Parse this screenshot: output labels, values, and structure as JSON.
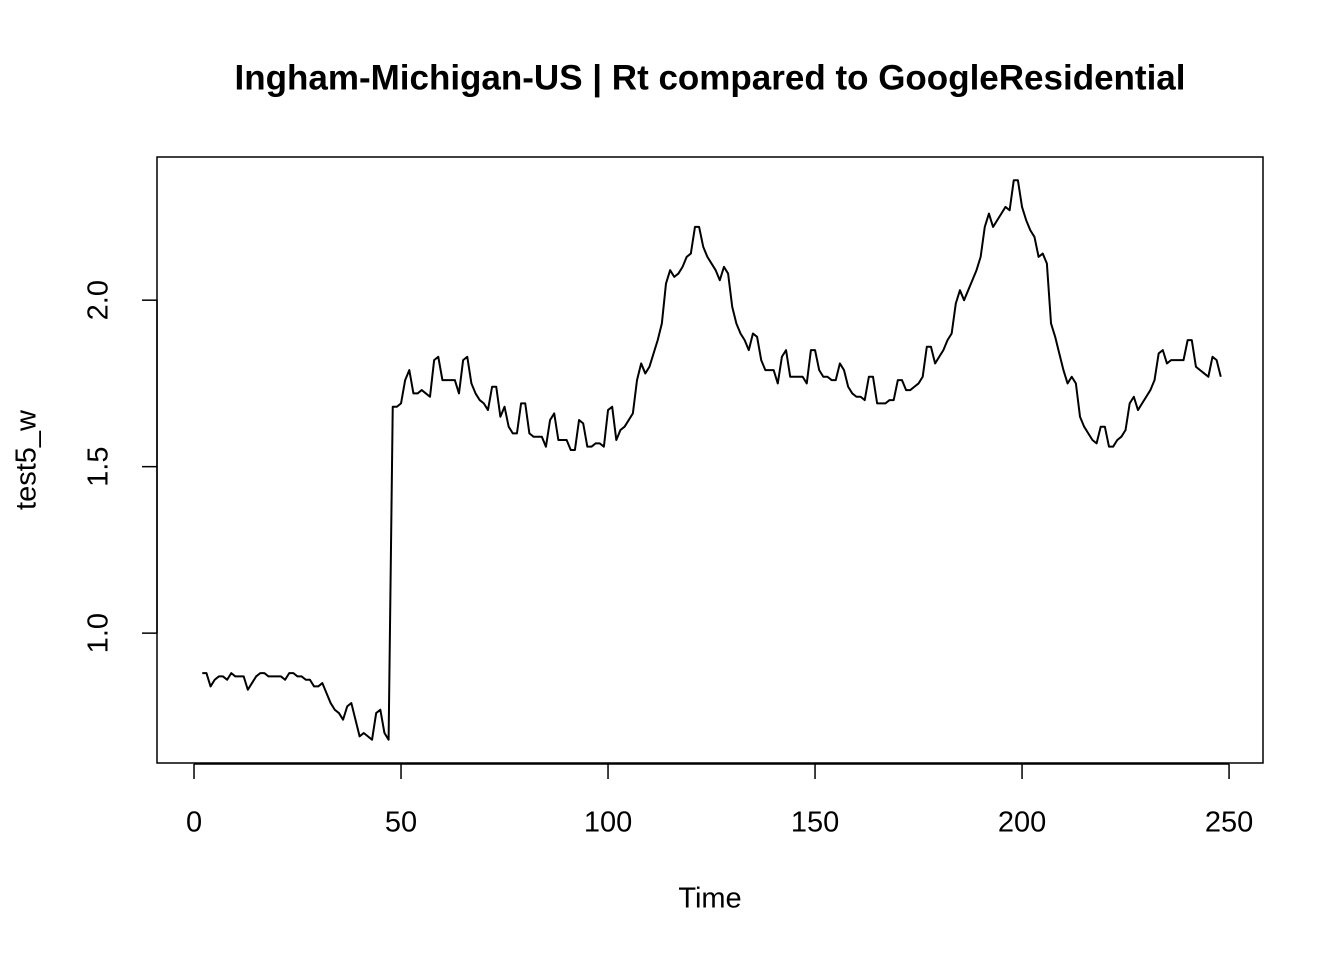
{
  "chart_data": {
    "type": "line",
    "title": "Ingham-Michigan-US | Rt compared to GoogleResidential",
    "x_label": "Time",
    "y_label": "test5_w",
    "x": [
      2,
      3,
      4,
      5,
      6,
      7,
      8,
      9,
      10,
      11,
      12,
      13,
      14,
      15,
      16,
      17,
      18,
      19,
      20,
      21,
      22,
      23,
      24,
      25,
      26,
      27,
      28,
      29,
      30,
      31,
      32,
      33,
      34,
      35,
      36,
      37,
      38,
      39,
      40,
      41,
      42,
      43,
      44,
      45,
      46,
      47,
      48,
      49,
      50,
      51,
      52,
      53,
      54,
      55,
      56,
      57,
      58,
      59,
      60,
      61,
      62,
      63,
      64,
      65,
      66,
      67,
      68,
      69,
      70,
      71,
      72,
      73,
      74,
      75,
      76,
      77,
      78,
      79,
      80,
      81,
      82,
      83,
      84,
      85,
      86,
      87,
      88,
      89,
      90,
      91,
      92,
      93,
      94,
      95,
      96,
      97,
      98,
      99,
      100,
      101,
      102,
      103,
      104,
      105,
      106,
      107,
      108,
      109,
      110,
      111,
      112,
      113,
      114,
      115,
      116,
      117,
      118,
      119,
      120,
      121,
      122,
      123,
      124,
      125,
      126,
      127,
      128,
      129,
      130,
      131,
      132,
      133,
      134,
      135,
      136,
      137,
      138,
      139,
      140,
      141,
      142,
      143,
      144,
      145,
      146,
      147,
      148,
      149,
      150,
      151,
      152,
      153,
      154,
      155,
      156,
      157,
      158,
      159,
      160,
      161,
      162,
      163,
      164,
      165,
      166,
      167,
      168,
      169,
      170,
      171,
      172,
      173,
      174,
      175,
      176,
      177,
      178,
      179,
      180,
      181,
      182,
      183,
      184,
      185,
      186,
      187,
      188,
      189,
      190,
      191,
      192,
      193,
      194,
      195,
      196,
      197,
      198,
      199,
      200,
      201,
      202,
      203,
      204,
      205,
      206,
      207,
      208,
      209,
      210,
      211,
      212,
      213,
      214,
      215,
      216,
      217,
      218,
      219,
      220,
      221,
      222,
      223,
      224,
      225,
      226,
      227,
      228,
      229,
      230,
      231,
      232,
      233,
      234,
      235,
      236,
      237,
      238,
      239,
      240,
      241,
      242,
      243,
      244,
      245,
      246,
      247,
      248
    ],
    "series": [
      {
        "name": "test5_w",
        "color": "#000000",
        "values": [
          0.88,
          0.88,
          0.84,
          0.86,
          0.87,
          0.87,
          0.86,
          0.88,
          0.87,
          0.87,
          0.87,
          0.83,
          0.85,
          0.87,
          0.88,
          0.88,
          0.87,
          0.87,
          0.87,
          0.87,
          0.86,
          0.88,
          0.88,
          0.87,
          0.87,
          0.86,
          0.86,
          0.84,
          0.84,
          0.85,
          0.82,
          0.79,
          0.77,
          0.76,
          0.74,
          0.78,
          0.79,
          0.74,
          0.69,
          0.7,
          0.69,
          0.68,
          0.76,
          0.77,
          0.7,
          0.68,
          1.68,
          1.68,
          1.69,
          1.76,
          1.79,
          1.72,
          1.72,
          1.73,
          1.72,
          1.71,
          1.82,
          1.83,
          1.76,
          1.76,
          1.76,
          1.76,
          1.72,
          1.82,
          1.83,
          1.75,
          1.72,
          1.7,
          1.69,
          1.67,
          1.74,
          1.74,
          1.65,
          1.68,
          1.62,
          1.6,
          1.6,
          1.69,
          1.69,
          1.6,
          1.59,
          1.59,
          1.59,
          1.56,
          1.64,
          1.66,
          1.58,
          1.58,
          1.58,
          1.55,
          1.55,
          1.64,
          1.63,
          1.56,
          1.56,
          1.57,
          1.57,
          1.56,
          1.67,
          1.68,
          1.58,
          1.61,
          1.62,
          1.64,
          1.66,
          1.76,
          1.81,
          1.78,
          1.8,
          1.84,
          1.88,
          1.93,
          2.05,
          2.09,
          2.07,
          2.08,
          2.1,
          2.13,
          2.14,
          2.22,
          2.22,
          2.16,
          2.13,
          2.11,
          2.09,
          2.06,
          2.1,
          2.08,
          1.98,
          1.93,
          1.9,
          1.88,
          1.85,
          1.9,
          1.89,
          1.82,
          1.79,
          1.79,
          1.79,
          1.75,
          1.83,
          1.85,
          1.77,
          1.77,
          1.77,
          1.77,
          1.75,
          1.85,
          1.85,
          1.79,
          1.77,
          1.77,
          1.76,
          1.76,
          1.81,
          1.79,
          1.74,
          1.72,
          1.71,
          1.71,
          1.7,
          1.77,
          1.77,
          1.69,
          1.69,
          1.69,
          1.7,
          1.7,
          1.76,
          1.76,
          1.73,
          1.73,
          1.74,
          1.75,
          1.77,
          1.86,
          1.86,
          1.81,
          1.83,
          1.85,
          1.88,
          1.9,
          1.99,
          2.03,
          2.0,
          2.03,
          2.06,
          2.09,
          2.13,
          2.22,
          2.26,
          2.22,
          2.24,
          2.26,
          2.28,
          2.27,
          2.36,
          2.36,
          2.28,
          2.24,
          2.21,
          2.19,
          2.13,
          2.14,
          2.11,
          1.93,
          1.89,
          1.84,
          1.79,
          1.75,
          1.77,
          1.75,
          1.65,
          1.62,
          1.6,
          1.58,
          1.57,
          1.62,
          1.62,
          1.56,
          1.56,
          1.58,
          1.59,
          1.61,
          1.69,
          1.71,
          1.67,
          1.69,
          1.71,
          1.73,
          1.76,
          1.84,
          1.85,
          1.81,
          1.82,
          1.82,
          1.82,
          1.82,
          1.88,
          1.88,
          1.8,
          1.79,
          1.78,
          1.77,
          1.83,
          1.82,
          1.77
        ]
      }
    ],
    "xlim": [
      -8.94,
      258.2
    ],
    "ylim": [
      0.61,
      2.43
    ],
    "xticks": [
      0,
      50,
      100,
      150,
      200,
      250
    ],
    "yticks": [
      {
        "value": 1,
        "label": "1.0"
      },
      {
        "value": 1.5,
        "label": "1.5"
      },
      {
        "value": 2,
        "label": "2.0"
      }
    ],
    "grid": false
  }
}
